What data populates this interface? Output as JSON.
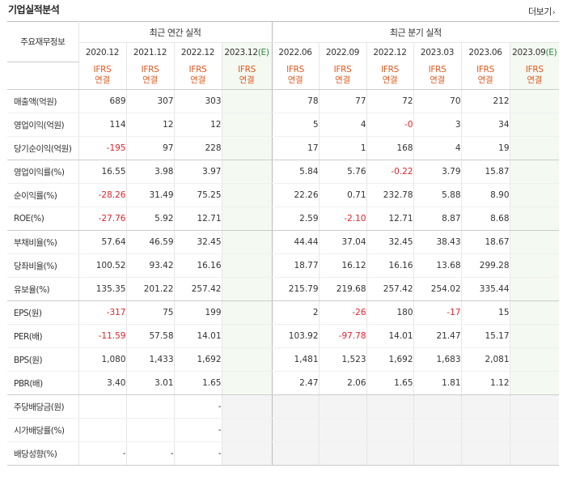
{
  "header": {
    "title": "기업실적분석",
    "more_label": "더보기",
    "more_arrow": "›"
  },
  "columns": {
    "corner": "주요재무정보",
    "annual_group": "최근 연간 실적",
    "quarter_group": "최근 분기 실적",
    "estimate_tag": "(E)",
    "annual": [
      "2020.12",
      "2021.12",
      "2022.12",
      "2023.12"
    ],
    "quarter": [
      "2022.06",
      "2022.09",
      "2022.12",
      "2023.03",
      "2023.06",
      "2023.09"
    ],
    "standard_top": "IFRS",
    "standard_bottom": "연결"
  },
  "rows": [
    {
      "label": "매출액(억원)",
      "values": [
        "689",
        "307",
        "303",
        "",
        "78",
        "77",
        "72",
        "70",
        "212",
        ""
      ]
    },
    {
      "label": "영업이익(억원)",
      "values": [
        "114",
        "12",
        "12",
        "",
        "5",
        "4",
        "-0",
        "3",
        "34",
        ""
      ]
    },
    {
      "label": "당기순이익(억원)",
      "values": [
        "-195",
        "97",
        "228",
        "",
        "17",
        "1",
        "168",
        "4",
        "19",
        ""
      ]
    },
    {
      "label": "영업이익률(%)",
      "values": [
        "16.55",
        "3.98",
        "3.97",
        "",
        "5.84",
        "5.76",
        "-0.22",
        "3.79",
        "15.87",
        ""
      ]
    },
    {
      "label": "순이익률(%)",
      "values": [
        "-28.26",
        "31.49",
        "75.25",
        "",
        "22.26",
        "0.71",
        "232.78",
        "5.88",
        "8.90",
        ""
      ]
    },
    {
      "label": "ROE(%)",
      "values": [
        "-27.76",
        "5.92",
        "12.71",
        "",
        "2.59",
        "-2.10",
        "12.71",
        "8.87",
        "8.68",
        ""
      ]
    },
    {
      "label": "부채비율(%)",
      "values": [
        "57.64",
        "46.59",
        "32.45",
        "",
        "44.44",
        "37.04",
        "32.45",
        "38.43",
        "18.67",
        ""
      ]
    },
    {
      "label": "당좌비율(%)",
      "values": [
        "100.52",
        "93.42",
        "16.16",
        "",
        "18.77",
        "16.12",
        "16.16",
        "13.68",
        "299.28",
        ""
      ]
    },
    {
      "label": "유보율(%)",
      "values": [
        "135.35",
        "201.22",
        "257.42",
        "",
        "215.79",
        "219.68",
        "257.42",
        "254.02",
        "335.44",
        ""
      ]
    },
    {
      "label": "EPS(원)",
      "values": [
        "-317",
        "75",
        "199",
        "",
        "2",
        "-26",
        "180",
        "-17",
        "15",
        ""
      ]
    },
    {
      "label": "PER(배)",
      "values": [
        "-11.59",
        "57.58",
        "14.01",
        "",
        "103.92",
        "-97.78",
        "14.01",
        "21.47",
        "15.17",
        ""
      ]
    },
    {
      "label": "BPS(원)",
      "values": [
        "1,080",
        "1,433",
        "1,692",
        "",
        "1,481",
        "1,523",
        "1,692",
        "1,683",
        "2,081",
        ""
      ]
    },
    {
      "label": "PBR(배)",
      "values": [
        "3.40",
        "3.01",
        "1.65",
        "",
        "2.47",
        "2.06",
        "1.65",
        "1.81",
        "1.12",
        ""
      ]
    },
    {
      "label": "주당배당금(원)",
      "values": [
        "",
        "",
        "-",
        "",
        "",
        "",
        "",
        "",
        "",
        ""
      ]
    },
    {
      "label": "시가배당률(%)",
      "values": [
        "",
        "",
        "-",
        "",
        "",
        "",
        "",
        "",
        "",
        ""
      ]
    },
    {
      "label": "배당성향(%)",
      "values": [
        "-",
        "-",
        "-",
        "",
        "",
        "",
        "",
        "",
        "",
        ""
      ]
    }
  ],
  "colors": {
    "negative": "#e4222b",
    "ifrs": "#e4571e",
    "estimate": "#2b8a3e"
  }
}
